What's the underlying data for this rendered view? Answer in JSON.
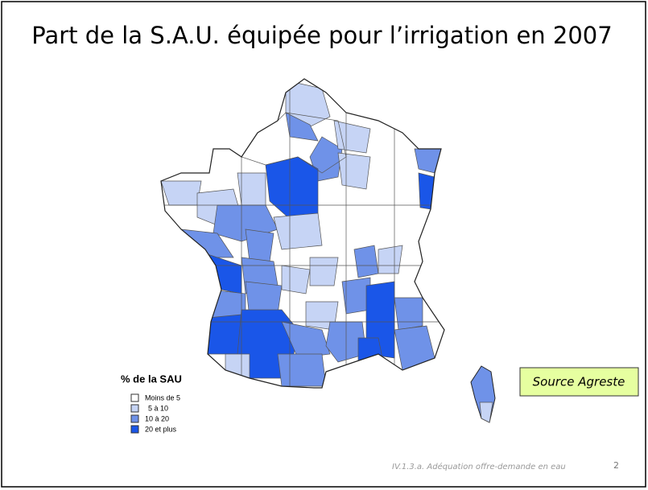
{
  "header": {
    "title": "Part de la S.A.U. équipée pour l’irrigation en 2007"
  },
  "legend": {
    "title": "% de la SAU",
    "items": [
      "Moins de 5",
      "5 à 10",
      "10 à 20",
      "20 et plus"
    ]
  },
  "source": "Source Agreste",
  "footer": {
    "text": "IV.1.3.a. Adéquation offre-demande en eau",
    "page": "2"
  }
}
